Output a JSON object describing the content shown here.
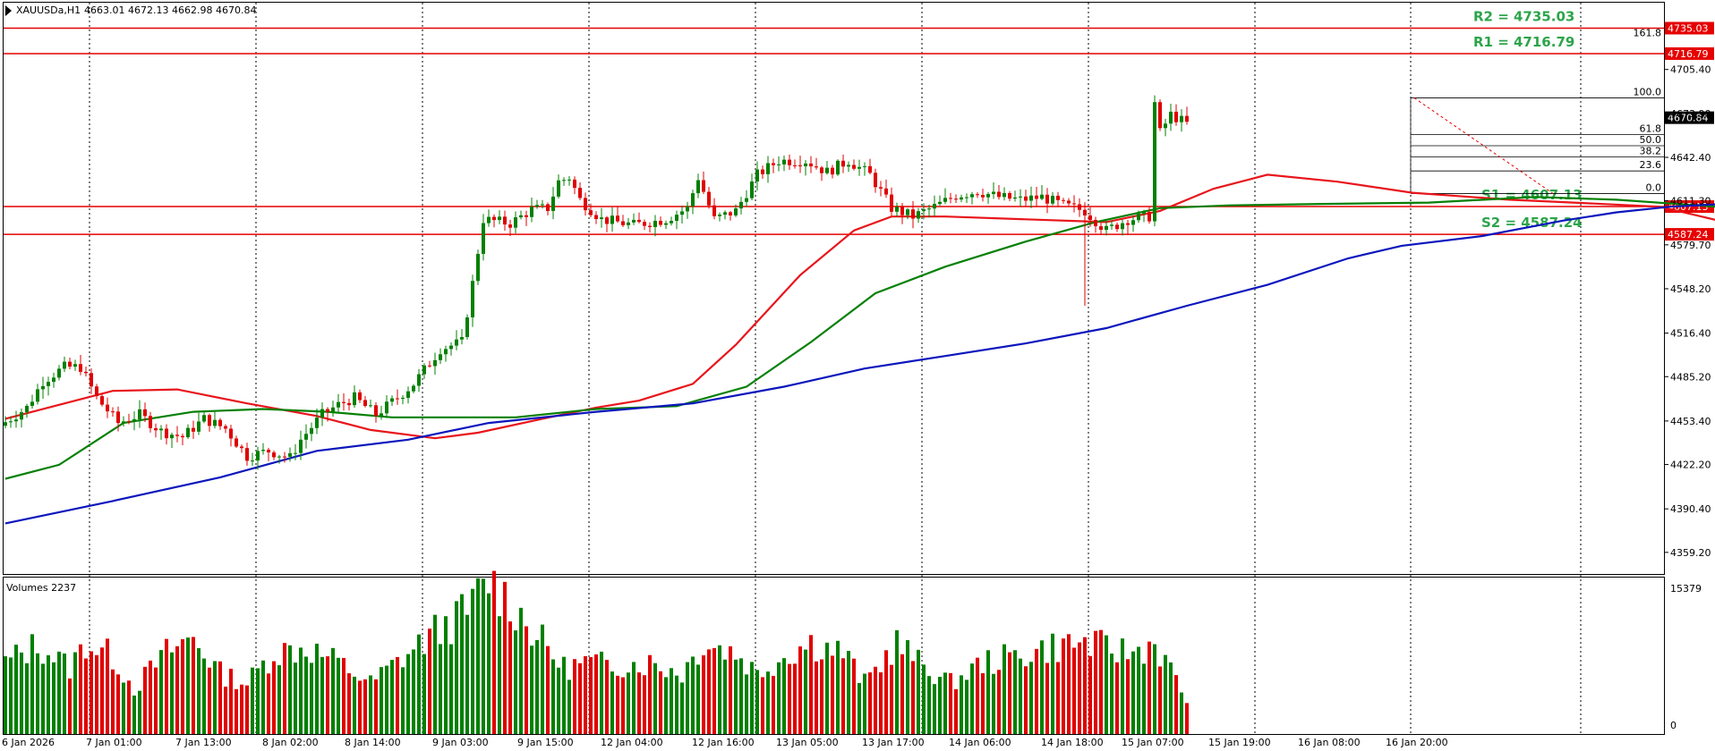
{
  "chart_data": [
    {
      "type": "candlestick",
      "title": "XAUUSDa,H1",
      "ohlc_readout": "4663.01 4672.13 4662.98 4670.84",
      "ylim": [
        4345,
        4765
      ],
      "y_ticks": [
        "4705.40",
        "4673.90",
        "4642.40",
        "4611.30",
        "4579.70",
        "4548.20",
        "4516.40",
        "4485.20",
        "4453.40",
        "4422.20",
        "4390.40",
        "4359.20"
      ],
      "x_ticks": [
        "6 Jan 2026",
        "7 Jan 01:00",
        "7 Jan 13:00",
        "8 Jan 02:00",
        "8 Jan 14:00",
        "9 Jan 03:00",
        "9 Jan 15:00",
        "12 Jan 04:00",
        "12 Jan 16:00",
        "13 Jan 05:00",
        "13 Jan 17:00",
        "14 Jan 06:00",
        "14 Jan 18:00",
        "15 Jan 07:00",
        "15 Jan 19:00",
        "16 Jan 08:00",
        "16 Jan 20:00"
      ],
      "current_price": {
        "label": "4670.84",
        "value": 4670.84
      },
      "levels": [
        {
          "name": "R2",
          "label": "R2 = 4735.03",
          "tag": "4735.03",
          "value": 4735.03
        },
        {
          "name": "R1",
          "label": "R1 = 4716.79",
          "tag": "4716.79",
          "value": 4716.79
        },
        {
          "name": "S1",
          "label": "S1 = 4607.13",
          "tag": "4607.13",
          "value": 4607.13
        },
        {
          "name": "S2",
          "label": "S2 = 4587.24",
          "tag": "4587.24",
          "value": 4587.24
        }
      ],
      "fibonacci": {
        "low": 4616.5,
        "high": 4685.0,
        "levels": [
          {
            "label": "161.8",
            "ratio": 1.618
          },
          {
            "label": "100.0",
            "ratio": 1.0
          },
          {
            "label": "61.8",
            "ratio": 0.618
          },
          {
            "label": "50.0",
            "ratio": 0.5
          },
          {
            "label": "38.2",
            "ratio": 0.382
          },
          {
            "label": "23.6",
            "ratio": 0.236
          },
          {
            "label": "0.0",
            "ratio": 0.0
          }
        ]
      },
      "moving_averages": [
        {
          "color": "#e8151b",
          "points": [
            [
              0,
              4455
            ],
            [
              8,
              4463
            ],
            [
              20,
              4475
            ],
            [
              32,
              4476
            ],
            [
              45,
              4466
            ],
            [
              58,
              4457
            ],
            [
              68,
              4447
            ],
            [
              80,
              4441
            ],
            [
              88,
              4445
            ],
            [
              100,
              4455
            ],
            [
              110,
              4463
            ],
            [
              118,
              4468
            ],
            [
              128,
              4480
            ],
            [
              136,
              4508
            ],
            [
              148,
              4558
            ],
            [
              158,
              4590
            ],
            [
              165,
              4600
            ],
            [
              175,
              4600
            ],
            [
              190,
              4598
            ],
            [
              205,
              4596
            ],
            [
              215,
              4604
            ],
            [
              225,
              4620
            ],
            [
              235,
              4630
            ],
            [
              248,
              4625
            ],
            [
              262,
              4617
            ],
            [
              280,
              4612
            ],
            [
              292,
              4610
            ],
            [
              308,
              4607
            ],
            [
              318,
              4598
            ],
            [
              323,
              4594
            ],
            [
              330,
              4602
            ],
            [
              335,
              4620
            ]
          ]
        },
        {
          "color": "#068006",
          "points": [
            [
              0,
              4412
            ],
            [
              10,
              4422
            ],
            [
              22,
              4452
            ],
            [
              35,
              4460
            ],
            [
              48,
              4462
            ],
            [
              60,
              4460
            ],
            [
              72,
              4456
            ],
            [
              82,
              4456
            ],
            [
              95,
              4456
            ],
            [
              110,
              4462
            ],
            [
              125,
              4464
            ],
            [
              138,
              4478
            ],
            [
              150,
              4510
            ],
            [
              162,
              4545
            ],
            [
              175,
              4564
            ],
            [
              190,
              4582
            ],
            [
              203,
              4596
            ],
            [
              215,
              4606
            ],
            [
              228,
              4608
            ],
            [
              245,
              4609
            ],
            [
              265,
              4610
            ],
            [
              285,
              4614
            ],
            [
              300,
              4612
            ],
            [
              315,
              4608
            ],
            [
              322,
              4606
            ],
            [
              328,
              4608
            ],
            [
              335,
              4611
            ]
          ]
        },
        {
          "color": "#0b16bd",
          "points": [
            [
              0,
              4380
            ],
            [
              20,
              4396
            ],
            [
              40,
              4413
            ],
            [
              58,
              4432
            ],
            [
              75,
              4440
            ],
            [
              90,
              4452
            ],
            [
              110,
              4460
            ],
            [
              128,
              4466
            ],
            [
              145,
              4478
            ],
            [
              160,
              4491
            ],
            [
              175,
              4500
            ],
            [
              190,
              4509
            ],
            [
              205,
              4520
            ],
            [
              220,
              4536
            ],
            [
              235,
              4551
            ],
            [
              250,
              4570
            ],
            [
              260,
              4579
            ],
            [
              275,
              4586
            ],
            [
              290,
              4597
            ],
            [
              300,
              4603
            ],
            [
              310,
              4607
            ],
            [
              320,
              4609
            ],
            [
              330,
              4611
            ],
            [
              340,
              4614
            ]
          ]
        }
      ]
    },
    {
      "type": "bar",
      "title": "Volumes 2237",
      "ylim": [
        0,
        15379
      ],
      "y_ticks": [
        "15379",
        "0"
      ]
    }
  ]
}
